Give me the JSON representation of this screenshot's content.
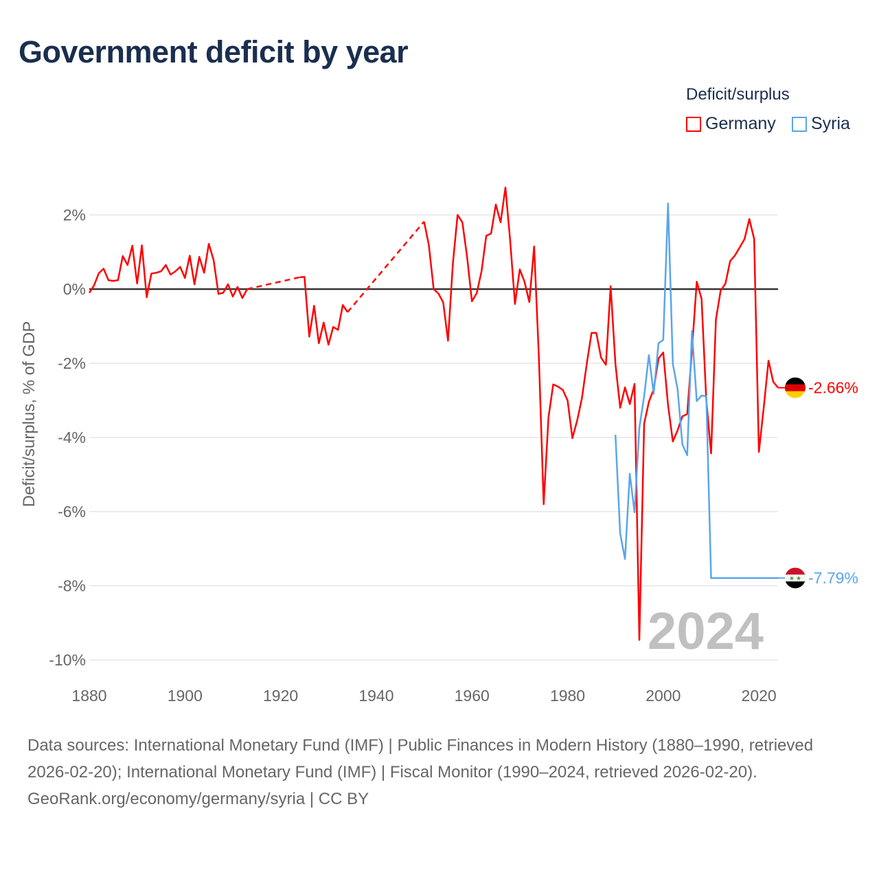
{
  "title": "Government deficit by year",
  "legend": {
    "title": "Deficit/surplus",
    "items": [
      {
        "label": "Germany",
        "color": "#ff0000"
      },
      {
        "label": "Syria",
        "color": "#5aa5ec"
      }
    ]
  },
  "year_watermark": "2024",
  "footer": {
    "sources": "Data sources: International Monetary Fund (IMF) | Public Finances in Modern History (1880–1990, retrieved 2026-02-20); International Monetary Fund (IMF) | Fiscal Monitor (1990–2024, retrieved 2026-02-20).",
    "credit": "GeoRank.org/economy/germany/syria | CC BY"
  },
  "chart_data": {
    "type": "line",
    "title": "Government deficit by year",
    "xlabel": "",
    "ylabel": "Deficit/surplus, % of GDP",
    "xlim": [
      1880,
      2024
    ],
    "ylim": [
      -10,
      2.8
    ],
    "x_ticks": [
      1880,
      1900,
      1920,
      1940,
      1960,
      1980,
      2000,
      2020
    ],
    "x_tick_labels": [
      "1880",
      "1900",
      "1920",
      "1940",
      "1960",
      "1980",
      "2000",
      "2020"
    ],
    "y_ticks": [
      2,
      0,
      -2,
      -4,
      -6,
      -8,
      -10
    ],
    "y_tick_labels": [
      "2%",
      "0%",
      "-2%",
      "-4%",
      "-6%",
      "-8%",
      "-10%"
    ],
    "grid": true,
    "legend_position": "top-right",
    "series": [
      {
        "name": "Germany",
        "color": "#ff0000",
        "start_year": 1880,
        "end_label": "-2.66%",
        "values": [
          -0.1,
          0.1,
          0.43,
          0.55,
          0.24,
          0.22,
          0.24,
          0.89,
          0.65,
          1.17,
          0.15,
          1.18,
          -0.22,
          0.42,
          0.44,
          0.48,
          0.65,
          0.39,
          0.48,
          0.6,
          0.3,
          0.9,
          0.13,
          0.87,
          0.44,
          1.22,
          0.78,
          -0.13,
          -0.1,
          0.13,
          -0.2,
          0.06,
          -0.24,
          0.0,
          null,
          null,
          null,
          null,
          null,
          null,
          null,
          null,
          null,
          null,
          0.32,
          0.33,
          -1.28,
          -0.45,
          -1.46,
          -0.9,
          -1.5,
          -1.02,
          -1.1,
          -0.43,
          -0.62,
          null,
          null,
          null,
          null,
          null,
          null,
          null,
          null,
          null,
          null,
          null,
          null,
          null,
          null,
          null,
          1.82,
          1.18,
          0.0,
          -0.12,
          -0.36,
          -1.39,
          0.67,
          2.0,
          1.8,
          0.85,
          -0.33,
          -0.11,
          0.48,
          1.44,
          1.5,
          2.28,
          1.8,
          2.74,
          1.31,
          -0.4,
          0.53,
          0.2,
          -0.35,
          1.15,
          -1.83,
          -5.8,
          -3.46,
          -2.57,
          -2.63,
          -2.72,
          -3.0,
          -4.02,
          -3.54,
          -2.94,
          -2.02,
          -1.18,
          -1.18,
          -1.85,
          -2.04,
          0.08,
          -2.02,
          -3.2,
          -2.65,
          -3.1,
          -2.56,
          -9.46,
          -3.63,
          -3.04,
          -2.7,
          -1.87,
          -1.71,
          -3.13,
          -4.11,
          -3.81,
          -3.43,
          -3.37,
          -1.65,
          0.2,
          -0.26,
          -3.0,
          -4.43,
          -0.82,
          -0.04,
          0.15,
          0.76,
          0.91,
          1.13,
          1.35,
          1.89,
          1.35,
          -4.39,
          -3.2,
          -1.93,
          -2.5,
          -2.66
        ]
      },
      {
        "name": "Syria",
        "color": "#5aa5ec",
        "start_year": 1990,
        "end_label": "-7.79%",
        "values": [
          -3.93,
          -6.59,
          -7.28,
          -4.98,
          -6.02,
          -3.74,
          -2.89,
          -1.78,
          -2.82,
          -1.46,
          -1.37,
          2.31,
          -2.02,
          -2.7,
          -4.19,
          -4.48,
          -1.13,
          -3.02,
          -2.87,
          -2.89,
          -7.79,
          -7.79,
          -7.79,
          -7.79,
          -7.79,
          -7.79,
          -7.79,
          -7.79,
          -7.79,
          -7.79,
          -7.79,
          -7.79,
          -7.79,
          -7.79,
          -7.79
        ]
      }
    ]
  }
}
